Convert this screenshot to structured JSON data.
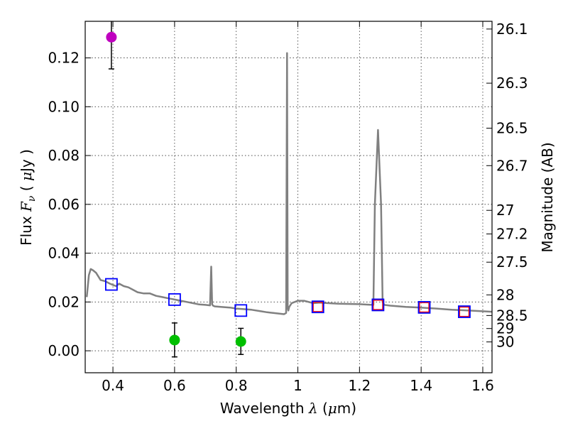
{
  "chart_data": {
    "type": "scatter",
    "xlabel_text": "Wavelength",
    "xlabel_symbol": "λ",
    "xlabel_units_open": "(",
    "xlabel_units_mu": "μ",
    "xlabel_units_rest": "m)",
    "ylabel_text": "Flux",
    "ylabel_symbol": "F",
    "ylabel_sub": "ν",
    "ylabel_units_open": "(",
    "ylabel_units_mu": "μ",
    "ylabel_units_rest": "Jy )",
    "y2label": "Magnitude (AB)",
    "xlim": [
      0.31,
      1.63
    ],
    "ylim": [
      -0.009,
      0.135
    ],
    "xticks": [
      {
        "v": 0.4,
        "label": "0.4"
      },
      {
        "v": 0.6,
        "label": "0.6"
      },
      {
        "v": 0.8,
        "label": "0.8"
      },
      {
        "v": 1.0,
        "label": "1"
      },
      {
        "v": 1.2,
        "label": "1.2"
      },
      {
        "v": 1.4,
        "label": "1.4"
      },
      {
        "v": 1.6,
        "label": "1.6"
      }
    ],
    "yticks": [
      {
        "v": 0.0,
        "label": "0.00"
      },
      {
        "v": 0.02,
        "label": "0.02"
      },
      {
        "v": 0.04,
        "label": "0.04"
      },
      {
        "v": 0.06,
        "label": "0.06"
      },
      {
        "v": 0.08,
        "label": "0.08"
      },
      {
        "v": 0.1,
        "label": "0.10"
      },
      {
        "v": 0.12,
        "label": "0.12"
      }
    ],
    "y2ticks": [
      {
        "mag": 26.1,
        "label": "26.1"
      },
      {
        "mag": 26.3,
        "label": "26.3"
      },
      {
        "mag": 26.5,
        "label": "26.5"
      },
      {
        "mag": 26.7,
        "label": "26.7"
      },
      {
        "mag": 27.0,
        "label": "27"
      },
      {
        "mag": 27.2,
        "label": "27.2"
      },
      {
        "mag": 27.5,
        "label": "27.5"
      },
      {
        "mag": 28.0,
        "label": "28"
      },
      {
        "mag": 28.5,
        "label": "28.5"
      },
      {
        "mag": 29.0,
        "label": "29"
      },
      {
        "mag": 30.0,
        "label": "30"
      }
    ],
    "spectrum": {
      "name": "model-spectrum",
      "color": "#808080",
      "x": [
        0.315,
        0.322,
        0.328,
        0.335,
        0.345,
        0.36,
        0.375,
        0.39,
        0.4,
        0.41,
        0.42,
        0.435,
        0.45,
        0.465,
        0.48,
        0.5,
        0.52,
        0.54,
        0.56,
        0.58,
        0.6,
        0.62,
        0.64,
        0.66,
        0.68,
        0.7,
        0.715,
        0.719,
        0.722,
        0.725,
        0.73,
        0.75,
        0.78,
        0.8,
        0.82,
        0.85,
        0.88,
        0.9,
        0.92,
        0.94,
        0.955,
        0.962,
        0.965,
        0.967,
        0.969,
        0.972,
        0.98,
        1.0,
        1.02,
        1.05,
        1.07,
        1.1,
        1.13,
        1.17,
        1.2,
        1.23,
        1.245,
        1.25,
        1.26,
        1.27,
        1.275,
        1.28,
        1.3,
        1.35,
        1.4,
        1.45,
        1.5,
        1.55,
        1.6,
        1.63
      ],
      "y": [
        0.022,
        0.031,
        0.0335,
        0.033,
        0.032,
        0.029,
        0.0285,
        0.0275,
        0.027,
        0.0265,
        0.0275,
        0.0265,
        0.026,
        0.025,
        0.024,
        0.0235,
        0.0235,
        0.0225,
        0.022,
        0.0215,
        0.021,
        0.0205,
        0.02,
        0.0195,
        0.019,
        0.0188,
        0.0186,
        0.0345,
        0.019,
        0.0185,
        0.0182,
        0.018,
        0.0177,
        0.0173,
        0.0171,
        0.0168,
        0.0162,
        0.0158,
        0.0155,
        0.0152,
        0.015,
        0.0155,
        0.122,
        0.0175,
        0.0165,
        0.018,
        0.0195,
        0.0205,
        0.0205,
        0.0195,
        0.0197,
        0.0195,
        0.0193,
        0.0192,
        0.0191,
        0.0189,
        0.0188,
        0.06,
        0.0905,
        0.06,
        0.02,
        0.0188,
        0.0185,
        0.018,
        0.0177,
        0.0173,
        0.0168,
        0.0165,
        0.0162,
        0.016
      ]
    },
    "model_photometry": {
      "name": "model-photometry",
      "color": "#0000ff",
      "x": [
        0.395,
        0.6,
        0.815,
        1.065,
        1.26,
        1.41,
        1.54
      ],
      "y": [
        0.0272,
        0.021,
        0.0165,
        0.018,
        0.0188,
        0.0178,
        0.016
      ]
    },
    "observed_photometry": {
      "name": "observed-photometry",
      "color": "#ff0000",
      "x": [
        1.065,
        1.26,
        1.41,
        1.54
      ],
      "y": [
        0.018,
        0.0188,
        0.0178,
        0.016
      ]
    },
    "detection": {
      "name": "detection",
      "color": "#bf00bf",
      "x": [
        0.395
      ],
      "y": [
        0.1285
      ],
      "yerr_low": [
        0.1155
      ],
      "yerr_high": [
        0.138
      ]
    },
    "nondetections": {
      "name": "nondetection",
      "color": "#00bf00",
      "x": [
        0.6,
        0.815
      ],
      "y": [
        0.0044,
        0.0038
      ],
      "yerr_low": [
        -0.0025,
        -0.0015
      ],
      "yerr_high": [
        0.0114,
        0.0092
      ]
    }
  }
}
